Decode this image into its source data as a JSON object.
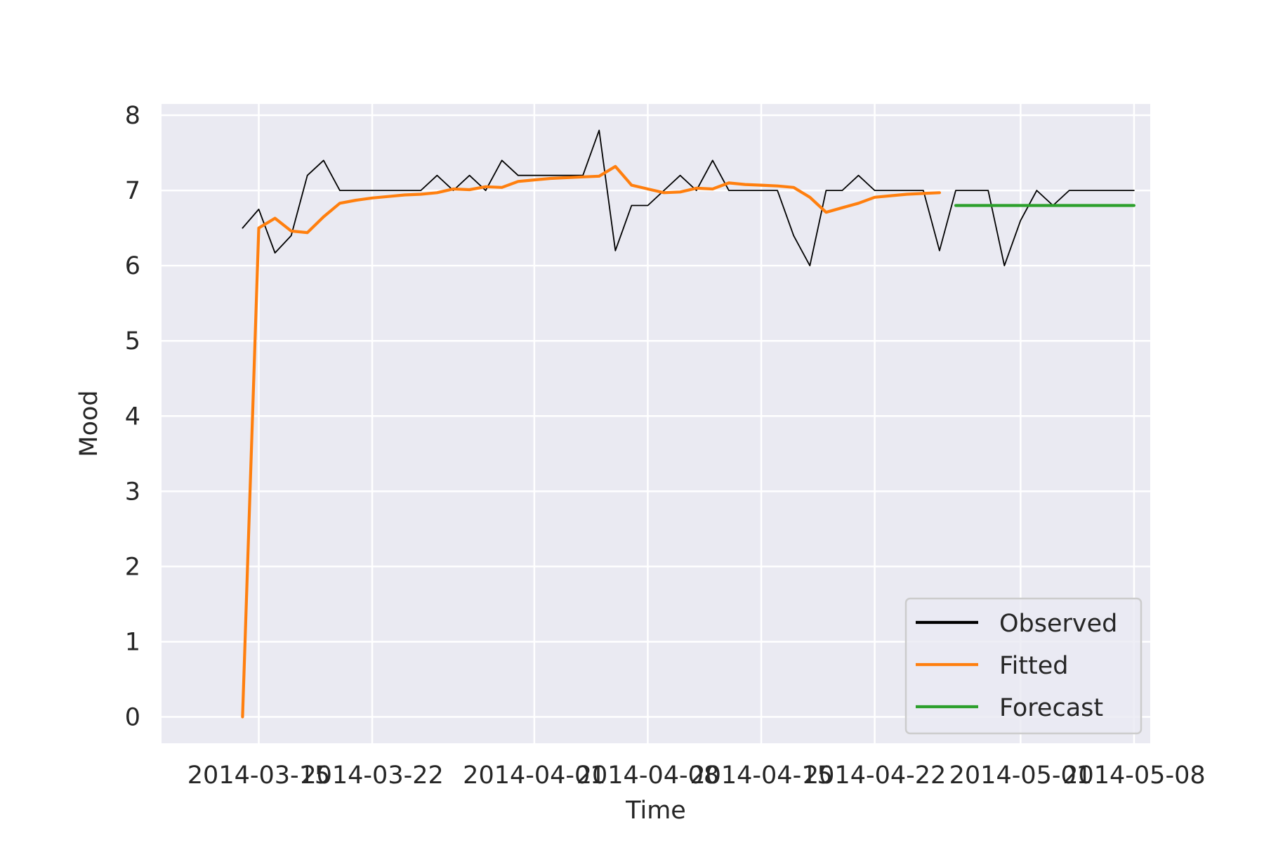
{
  "chart_data": {
    "type": "line",
    "xlabel": "Time",
    "ylabel": "Mood",
    "ylim": [
      -0.35,
      8.15
    ],
    "xlim": [
      "2014-03-09",
      "2014-05-09"
    ],
    "yticks": [
      0,
      1,
      2,
      3,
      4,
      5,
      6,
      7,
      8
    ],
    "xticks": [
      "2014-03-15",
      "2014-03-22",
      "2014-04-01",
      "2014-04-08",
      "2014-04-15",
      "2014-04-22",
      "2014-05-01",
      "2014-05-08"
    ],
    "grid": true,
    "legend_position": "lower right",
    "colors": {
      "background": "#EAEAF2",
      "grid": "#FFFFFF",
      "observed": "#000000",
      "fitted": "#FF7F0E",
      "forecast": "#2CA02C"
    },
    "series": [
      {
        "name": "Observed",
        "x": [
          "2014-03-14",
          "2014-03-15",
          "2014-03-16",
          "2014-03-17",
          "2014-03-18",
          "2014-03-19",
          "2014-03-20",
          "2014-03-21",
          "2014-03-22",
          "2014-03-23",
          "2014-03-24",
          "2014-03-25",
          "2014-03-26",
          "2014-03-27",
          "2014-03-28",
          "2014-03-29",
          "2014-03-30",
          "2014-03-31",
          "2014-04-01",
          "2014-04-02",
          "2014-04-03",
          "2014-04-04",
          "2014-04-05",
          "2014-04-06",
          "2014-04-07",
          "2014-04-08",
          "2014-04-09",
          "2014-04-10",
          "2014-04-11",
          "2014-04-12",
          "2014-04-13",
          "2014-04-14",
          "2014-04-15",
          "2014-04-16",
          "2014-04-17",
          "2014-04-18",
          "2014-04-19",
          "2014-04-20",
          "2014-04-21",
          "2014-04-22",
          "2014-04-23",
          "2014-04-24",
          "2014-04-25",
          "2014-04-26",
          "2014-04-27",
          "2014-04-28",
          "2014-04-29",
          "2014-04-30",
          "2014-05-01",
          "2014-05-02",
          "2014-05-03",
          "2014-05-04",
          "2014-05-05",
          "2014-05-06",
          "2014-05-07",
          "2014-05-08"
        ],
        "y": [
          6.5,
          6.75,
          6.17,
          6.4,
          7.2,
          7.4,
          7.0,
          7.0,
          7.0,
          7.0,
          7.0,
          7.0,
          7.2,
          7.0,
          7.2,
          7.0,
          7.4,
          7.2,
          7.2,
          7.2,
          7.2,
          7.2,
          7.8,
          6.2,
          6.8,
          6.8,
          7.0,
          7.2,
          7.0,
          7.4,
          7.0,
          7.0,
          7.0,
          7.0,
          6.4,
          6.0,
          7.0,
          7.0,
          7.2,
          7.0,
          7.0,
          7.0,
          7.0,
          6.2,
          7.0,
          7.0,
          7.0,
          6.0,
          6.6,
          7.0,
          6.8,
          7.0,
          7.0,
          7.0,
          7.0,
          7.0
        ]
      },
      {
        "name": "Fitted",
        "x": [
          "2014-03-14",
          "2014-03-15",
          "2014-03-16",
          "2014-03-17",
          "2014-03-18",
          "2014-03-19",
          "2014-03-20",
          "2014-03-21",
          "2014-03-22",
          "2014-03-23",
          "2014-03-24",
          "2014-03-25",
          "2014-03-26",
          "2014-03-27",
          "2014-03-28",
          "2014-03-29",
          "2014-03-30",
          "2014-03-31",
          "2014-04-01",
          "2014-04-02",
          "2014-04-03",
          "2014-04-04",
          "2014-04-05",
          "2014-04-06",
          "2014-04-07",
          "2014-04-08",
          "2014-04-09",
          "2014-04-10",
          "2014-04-11",
          "2014-04-12",
          "2014-04-13",
          "2014-04-14",
          "2014-04-15",
          "2014-04-16",
          "2014-04-17",
          "2014-04-18",
          "2014-04-19",
          "2014-04-20",
          "2014-04-21",
          "2014-04-22",
          "2014-04-23",
          "2014-04-24",
          "2014-04-25",
          "2014-04-26"
        ],
        "y": [
          0.0,
          6.5,
          6.63,
          6.46,
          6.44,
          6.65,
          6.83,
          6.87,
          6.9,
          6.92,
          6.94,
          6.95,
          6.97,
          7.02,
          7.01,
          7.05,
          7.04,
          7.12,
          7.14,
          7.16,
          7.17,
          7.18,
          7.19,
          7.32,
          7.07,
          7.02,
          6.97,
          6.98,
          7.03,
          7.02,
          7.1,
          7.08,
          7.07,
          7.06,
          7.04,
          6.91,
          6.71,
          6.77,
          6.83,
          6.91,
          6.93,
          6.95,
          6.96,
          6.97
        ]
      },
      {
        "name": "Forecast",
        "x": [
          "2014-04-27",
          "2014-04-28",
          "2014-04-29",
          "2014-04-30",
          "2014-05-01",
          "2014-05-02",
          "2014-05-03",
          "2014-05-04",
          "2014-05-05",
          "2014-05-06",
          "2014-05-07",
          "2014-05-08"
        ],
        "y": [
          6.8,
          6.8,
          6.8,
          6.8,
          6.8,
          6.8,
          6.8,
          6.8,
          6.8,
          6.8,
          6.8,
          6.8
        ]
      }
    ]
  }
}
